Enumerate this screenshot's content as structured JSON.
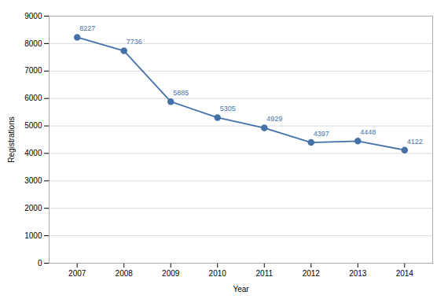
{
  "chart_data": {
    "type": "line",
    "x": [
      2007,
      2008,
      2009,
      2010,
      2011,
      2012,
      2013,
      2014
    ],
    "values": [
      8227,
      7736,
      5885,
      5305,
      4929,
      4397,
      4448,
      4122
    ],
    "color": "#4472a8",
    "marker": "circle",
    "xlabel": "Year",
    "ylabel": "Registrations",
    "xlim": [
      2006.4,
      2014.6
    ],
    "xticks": [
      2007,
      2008,
      2009,
      2010,
      2011,
      2012,
      2013,
      2014
    ],
    "ylim": [
      0,
      9000
    ],
    "yticks": [
      0,
      1000,
      2000,
      3000,
      4000,
      5000,
      6000,
      7000,
      8000,
      9000
    ],
    "grid": true,
    "data_labels": true
  }
}
